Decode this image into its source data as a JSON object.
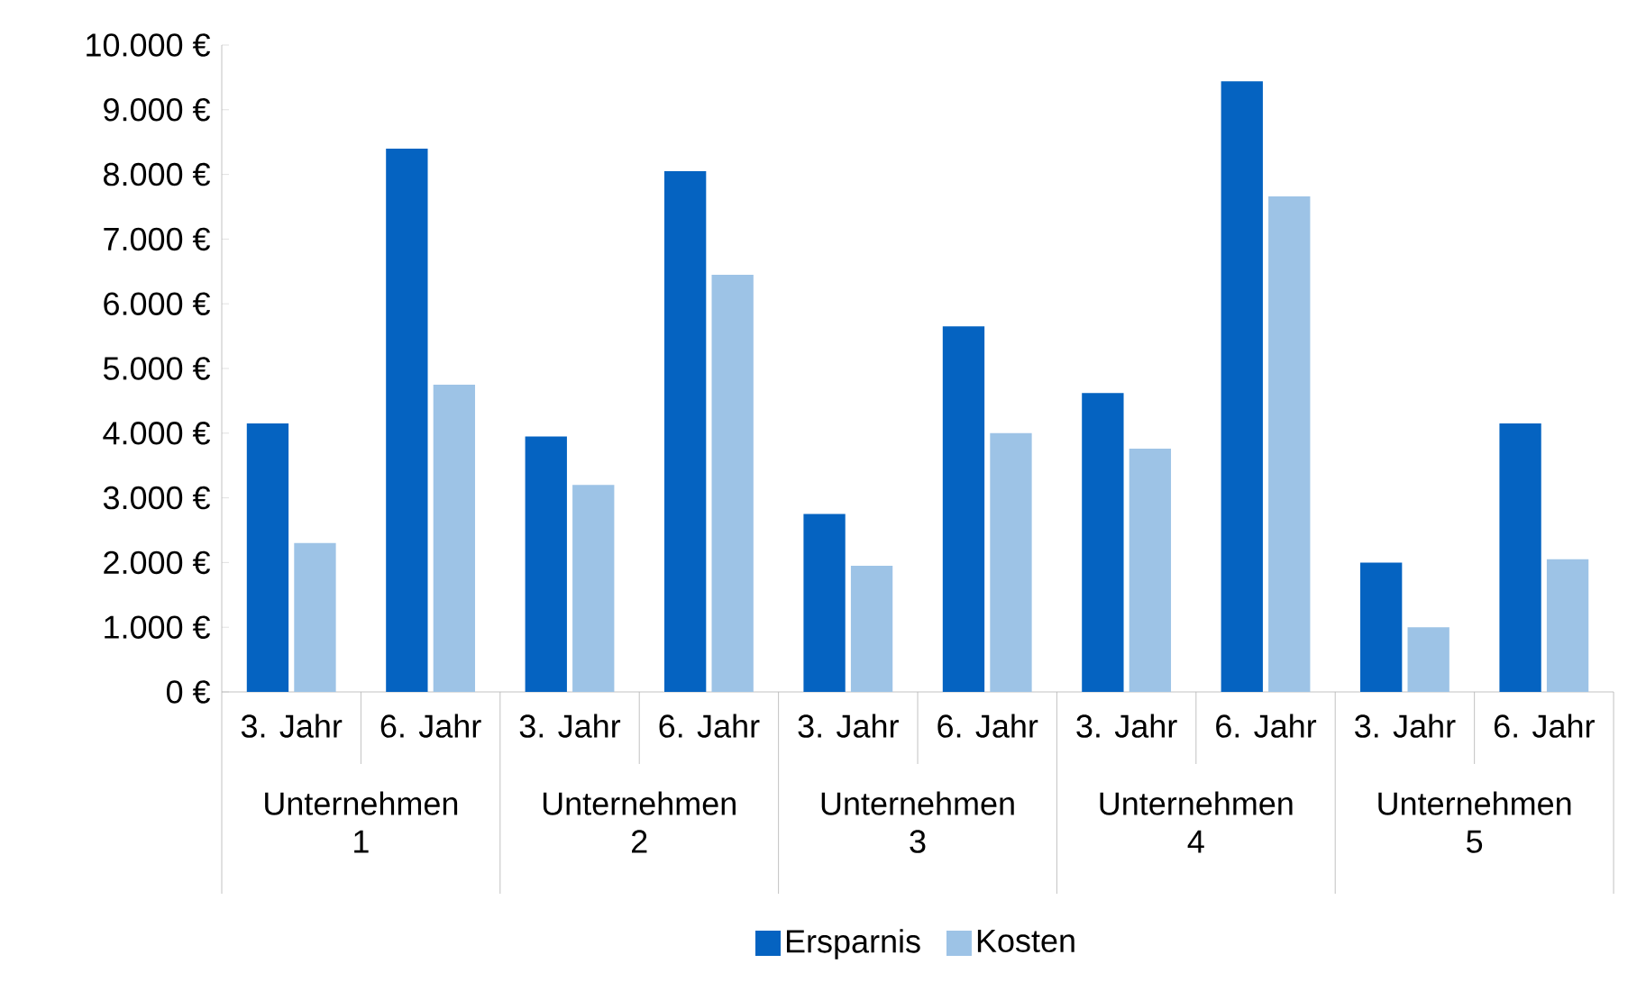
{
  "chart_data": {
    "type": "bar",
    "categories": [
      "3. Jahr",
      "6. Jahr",
      "3. Jahr",
      "6. Jahr",
      "3. Jahr",
      "6. Jahr",
      "3. Jahr",
      "6. Jahr",
      "3. Jahr",
      "6. Jahr"
    ],
    "series": [
      {
        "name": "Ersparnis",
        "color": "#0563c1",
        "values": [
          4150,
          8400,
          3950,
          8050,
          2750,
          5650,
          4620,
          9440,
          2000,
          4150
        ]
      },
      {
        "name": "Kosten",
        "color": "#9dc3e6",
        "values": [
          2300,
          4750,
          3200,
          6450,
          1950,
          4000,
          3760,
          7660,
          1000,
          2050
        ]
      }
    ],
    "ylim": [
      0,
      10000
    ],
    "yticks": [
      {
        "value": 0,
        "label": "0 €"
      },
      {
        "value": 1000,
        "label": "1.000 €"
      },
      {
        "value": 2000,
        "label": "2.000 €"
      },
      {
        "value": 3000,
        "label": "3.000 €"
      },
      {
        "value": 4000,
        "label": "4.000 €"
      },
      {
        "value": 5000,
        "label": "5.000 €"
      },
      {
        "value": 6000,
        "label": "6.000 €"
      },
      {
        "value": 7000,
        "label": "7.000 €"
      },
      {
        "value": 8000,
        "label": "8.000 €"
      },
      {
        "value": 9000,
        "label": "9.000 €"
      },
      {
        "value": 10000,
        "label": "10.000 €"
      }
    ],
    "annotations": [
      "Unternehmen 1",
      "Unternehmen 2",
      "Unternehmen 3",
      "Unternehmen 4",
      "Unternehmen 5"
    ],
    "legend": "bottom",
    "grid": false
  }
}
